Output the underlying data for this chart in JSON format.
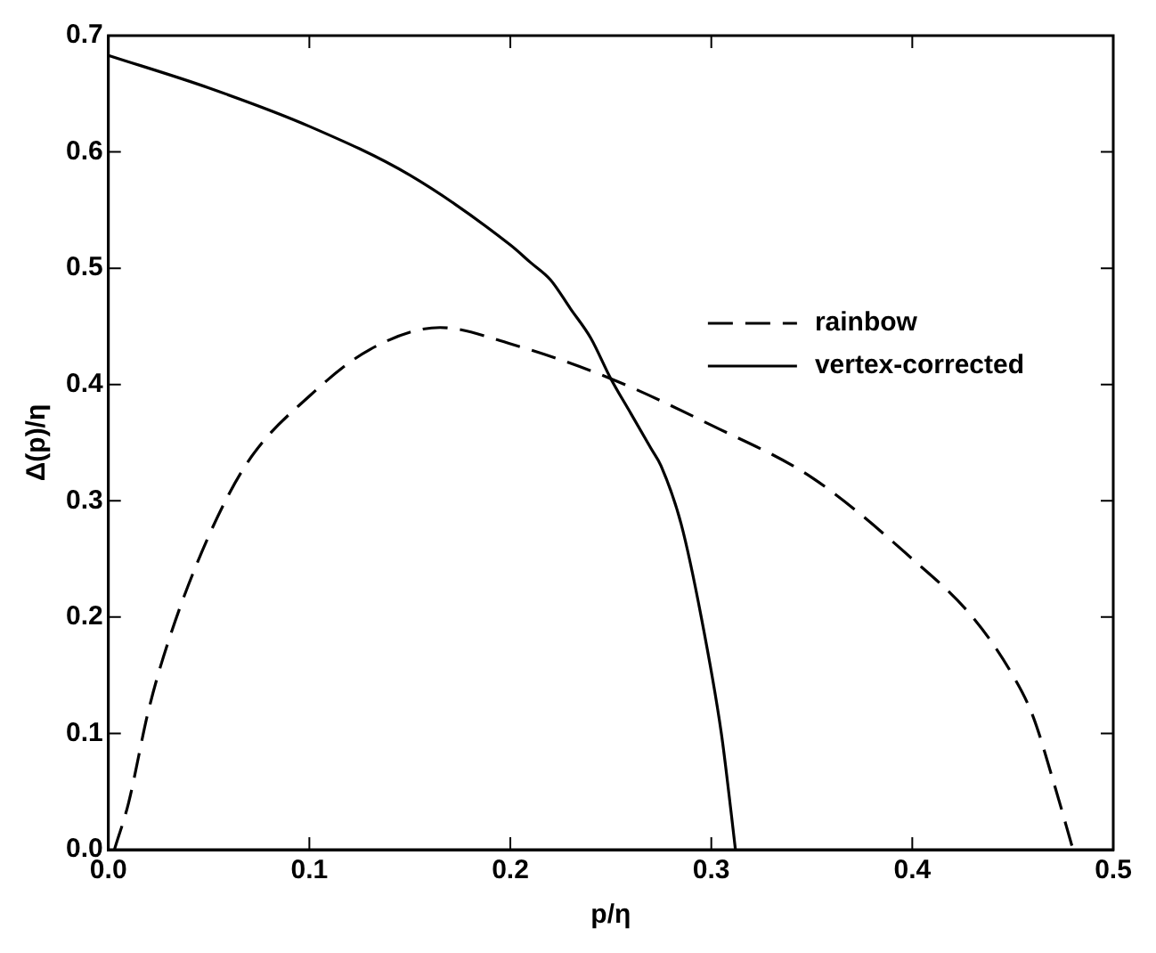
{
  "chart_data": {
    "type": "line",
    "xlabel": "p/η",
    "ylabel": "Δ(p)/η",
    "xlim": [
      0,
      0.5
    ],
    "xticks": [
      {
        "value": 0,
        "label": "0.0"
      },
      0.1,
      0.2,
      0.3,
      0.4,
      0.5
    ],
    "ylim": [
      0,
      0.7
    ],
    "yticks": [
      {
        "value": 0,
        "label": "0.0"
      },
      0.1,
      0.2,
      0.3,
      0.4,
      0.5,
      0.6,
      0.7
    ],
    "grid": false,
    "legend": "right",
    "marker": "none",
    "series": [
      {
        "name": "rainbow",
        "color": "#000000",
        "line_style": "dashed",
        "x": [
          0.003,
          0.01,
          0.02,
          0.03,
          0.05,
          0.07,
          0.1,
          0.13,
          0.165,
          0.2,
          0.25,
          0.3,
          0.35,
          0.4,
          0.43,
          0.45,
          0.46,
          0.47,
          0.48
        ],
        "values": [
          0,
          0.04,
          0.12,
          0.18,
          0.27,
          0.335,
          0.39,
          0.43,
          0.449,
          0.435,
          0.405,
          0.365,
          0.32,
          0.25,
          0.2,
          0.15,
          0.115,
          0.06,
          0
        ]
      },
      {
        "name": "vertex-corrected",
        "color": "#000000",
        "line_style": "solid",
        "x": [
          0,
          0.05,
          0.1,
          0.15,
          0.2,
          0.21,
          0.22,
          0.23,
          0.24,
          0.25,
          0.26,
          0.27,
          0.275,
          0.285,
          0.295,
          0.305,
          0.31,
          0.312
        ],
        "values": [
          0.683,
          0.655,
          0.622,
          0.58,
          0.52,
          0.505,
          0.49,
          0.465,
          0.44,
          0.405,
          0.375,
          0.345,
          0.33,
          0.28,
          0.2,
          0.1,
          0.03,
          0
        ]
      }
    ]
  }
}
